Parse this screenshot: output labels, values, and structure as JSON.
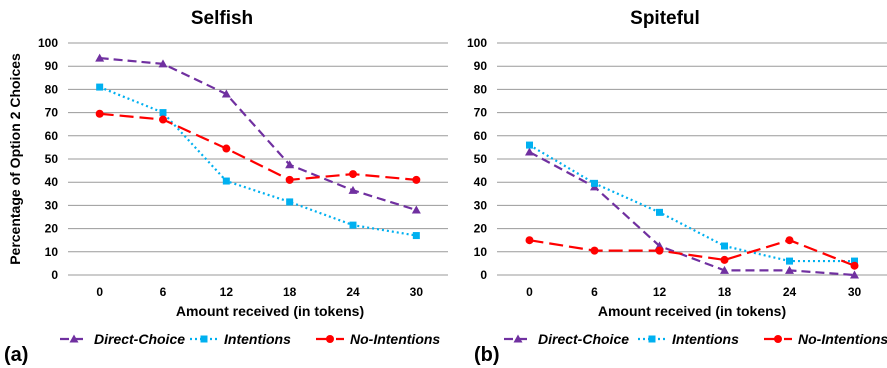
{
  "chart_data": [
    {
      "type": "line",
      "panel_label": "(a)",
      "title": "Selfish",
      "xlabel": "Amount received (in tokens)",
      "ylabel": "Percentage of Option 2 Choices",
      "categories": [
        "0",
        "6",
        "12",
        "18",
        "24",
        "30"
      ],
      "ylim": [
        0,
        100
      ],
      "yticks": [
        "0",
        "10",
        "20",
        "30",
        "40",
        "50",
        "60",
        "70",
        "80",
        "90",
        "100"
      ],
      "grid": true,
      "legend_position": "bottom",
      "series": [
        {
          "name": "Direct-Choice",
          "values": [
            93.5,
            91.0,
            78.0,
            47.5,
            36.5,
            28.0
          ],
          "color": "#7030a0",
          "marker": "triangle",
          "dash": "dash"
        },
        {
          "name": "Intentions",
          "values": [
            81.0,
            70.0,
            40.5,
            31.5,
            21.5,
            17.0
          ],
          "color": "#00b0f0",
          "marker": "square",
          "dash": "dot"
        },
        {
          "name": "No-Intentions",
          "values": [
            69.5,
            67.0,
            54.5,
            41.0,
            43.5,
            41.0
          ],
          "color": "#ff0000",
          "marker": "circle",
          "dash": "longdash"
        }
      ]
    },
    {
      "type": "line",
      "panel_label": "(b)",
      "title": "Spiteful",
      "xlabel": "Amount received (in tokens)",
      "ylabel": "",
      "categories": [
        "0",
        "6",
        "12",
        "18",
        "24",
        "30"
      ],
      "ylim": [
        0,
        100
      ],
      "yticks": [
        "0",
        "10",
        "20",
        "30",
        "40",
        "50",
        "60",
        "70",
        "80",
        "90",
        "100"
      ],
      "grid": true,
      "legend_position": "bottom",
      "series": [
        {
          "name": "Direct-Choice",
          "values": [
            53.0,
            38.0,
            12.5,
            2.0,
            2.0,
            0.0
          ],
          "color": "#7030a0",
          "marker": "triangle",
          "dash": "dash"
        },
        {
          "name": "Intentions",
          "values": [
            56.0,
            39.5,
            27.0,
            12.5,
            6.0,
            6.0
          ],
          "color": "#00b0f0",
          "marker": "square",
          "dash": "dot"
        },
        {
          "name": "No-Intentions",
          "values": [
            15.0,
            10.5,
            10.5,
            6.5,
            15.0,
            4.0
          ],
          "color": "#ff0000",
          "marker": "circle",
          "dash": "longdash"
        }
      ]
    }
  ]
}
